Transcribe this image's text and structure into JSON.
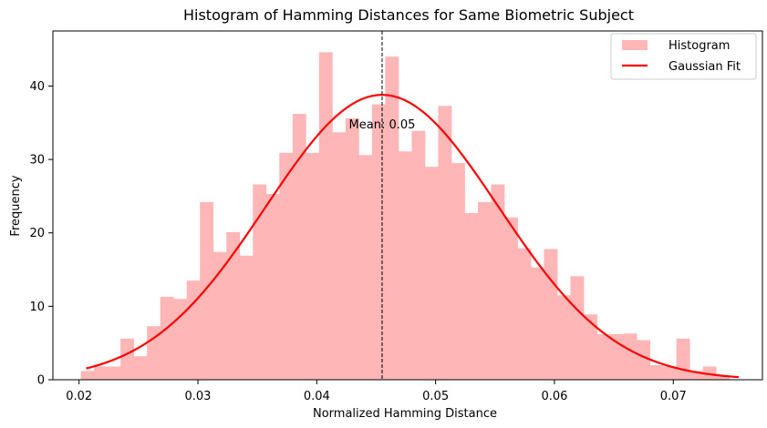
{
  "chart_data": {
    "type": "bar",
    "title": "Histogram of Hamming Distances for Same Biometric Subject",
    "xlabel": "Normalized Hamming Distance",
    "ylabel": "Frequency",
    "xlim": [
      0.0178,
      0.0775
    ],
    "ylim": [
      0,
      47.5
    ],
    "xticks": [
      "0.02",
      "0.03",
      "0.04",
      "0.05",
      "0.06",
      "0.07"
    ],
    "yticks": [
      "0",
      "10",
      "20",
      "30",
      "40"
    ],
    "grid": false,
    "legend_position": "top-right",
    "legend": [
      {
        "label": "Histogram",
        "kind": "patch"
      },
      {
        "label": "Gaussian Fit",
        "kind": "line"
      }
    ],
    "histogram": {
      "name": "Histogram",
      "color": "#ffb6b6",
      "bin_start": 0.02015,
      "bin_width": 0.0011135,
      "counts": [
        1.2,
        1.8,
        1.8,
        5.6,
        3.2,
        7.3,
        11.3,
        11.0,
        13.5,
        24.2,
        17.4,
        20.1,
        16.9,
        26.6,
        25.3,
        30.9,
        36.2,
        30.9,
        44.6,
        33.7,
        35.6,
        30.6,
        37.5,
        44.0,
        31.1,
        33.9,
        29.0,
        37.3,
        29.5,
        22.7,
        24.2,
        26.6,
        22.1,
        17.9,
        15.3,
        17.8,
        11.5,
        14.1,
        8.9,
        6.2,
        6.2,
        6.3,
        5.4,
        2.0,
        1.8,
        5.6,
        1.2,
        1.8,
        0.6
      ]
    },
    "gaussian_fit": {
      "name": "Gaussian Fit",
      "color": "#ff0000",
      "mean": 0.0455,
      "std": 0.0098,
      "peak": 38.8,
      "x_range": [
        0.0206,
        0.0755
      ]
    },
    "mean_line": {
      "x": 0.0455,
      "color": "#000000",
      "style": "dashed"
    },
    "annotation": {
      "text": "Mean: 0.05",
      "x": 0.0455,
      "y": 34.2
    }
  }
}
